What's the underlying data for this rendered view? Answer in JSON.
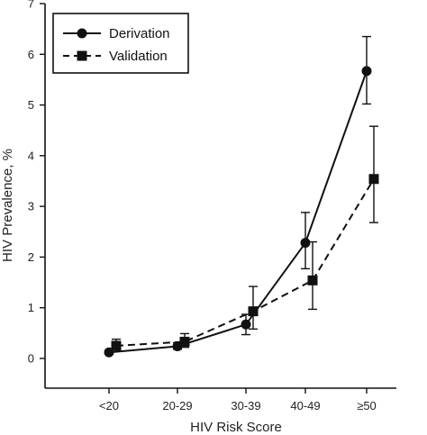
{
  "chart_data": {
    "type": "line",
    "categories": [
      "<20",
      "20-29",
      "30-39",
      "40-49",
      "≥50"
    ],
    "xlabel": "HIV Risk Score",
    "ylabel": "HIV Prevalence, %",
    "ylim": [
      0,
      7
    ],
    "yticks": [
      0,
      1,
      2,
      3,
      4,
      5,
      6,
      7
    ],
    "grid": false,
    "legend_position": "top-left",
    "series": [
      {
        "name": "Derivation",
        "marker": "circle",
        "line_style": "solid",
        "values": [
          0.12,
          0.24,
          0.67,
          2.28,
          5.67
        ],
        "ci_lower": [
          0.09,
          0.18,
          0.47,
          1.77,
          5.02
        ],
        "ci_upper": [
          0.16,
          0.31,
          0.87,
          2.88,
          6.35
        ]
      },
      {
        "name": "Validation",
        "marker": "square",
        "line_style": "dashed",
        "values": [
          0.25,
          0.33,
          0.93,
          1.54,
          3.54
        ],
        "ci_lower": [
          0.16,
          0.22,
          0.58,
          0.97,
          2.68
        ],
        "ci_upper": [
          0.38,
          0.49,
          1.42,
          2.3,
          4.58
        ]
      }
    ]
  }
}
